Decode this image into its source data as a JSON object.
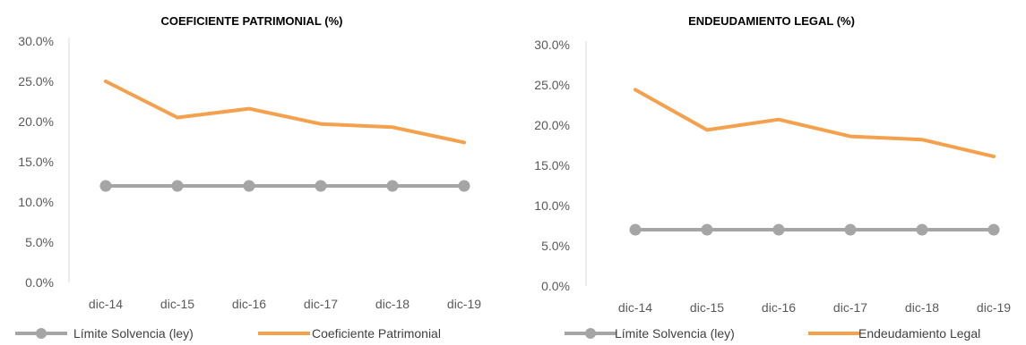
{
  "colors": {
    "limit": "#a5a5a5",
    "series": "#f4a04c",
    "axis": "#d9d9d9",
    "text": "#595959"
  },
  "chart_data": [
    {
      "type": "line",
      "title": "COEFICIENTE PATRIMONIAL (%)",
      "categories": [
        "dic-14",
        "dic-15",
        "dic-16",
        "dic-17",
        "dic-18",
        "dic-19"
      ],
      "yticks": [
        "0.0%",
        "5.0%",
        "10.0%",
        "15.0%",
        "20.0%",
        "25.0%",
        "30.0%"
      ],
      "ylim": [
        0,
        30
      ],
      "grid": false,
      "legend": "bottom",
      "series": [
        {
          "name": "Límite Solvencia (ley)",
          "values": [
            12,
            12,
            12,
            12,
            12,
            12
          ],
          "markers": true
        },
        {
          "name": "Coeficiente Patrimonial",
          "values": [
            25.0,
            20.5,
            21.6,
            19.7,
            19.3,
            17.4
          ],
          "markers": false
        }
      ]
    },
    {
      "type": "line",
      "title": "ENDEUDAMIENTO LEGAL (%)",
      "categories": [
        "dic-14",
        "dic-15",
        "dic-16",
        "dic-17",
        "dic-18",
        "dic-19"
      ],
      "yticks": [
        "0.0%",
        "5.0%",
        "10.0%",
        "15.0%",
        "20.0%",
        "25.0%",
        "30.0%"
      ],
      "ylim": [
        0,
        30
      ],
      "grid": false,
      "legend": "bottom",
      "series": [
        {
          "name": "Límite Solvencia (ley)",
          "values": [
            7,
            7,
            7,
            7,
            7,
            7
          ],
          "markers": true
        },
        {
          "name": "Endeudamiento Legal",
          "values": [
            24.4,
            19.4,
            20.7,
            18.6,
            18.2,
            16.1
          ],
          "markers": false
        }
      ]
    }
  ]
}
